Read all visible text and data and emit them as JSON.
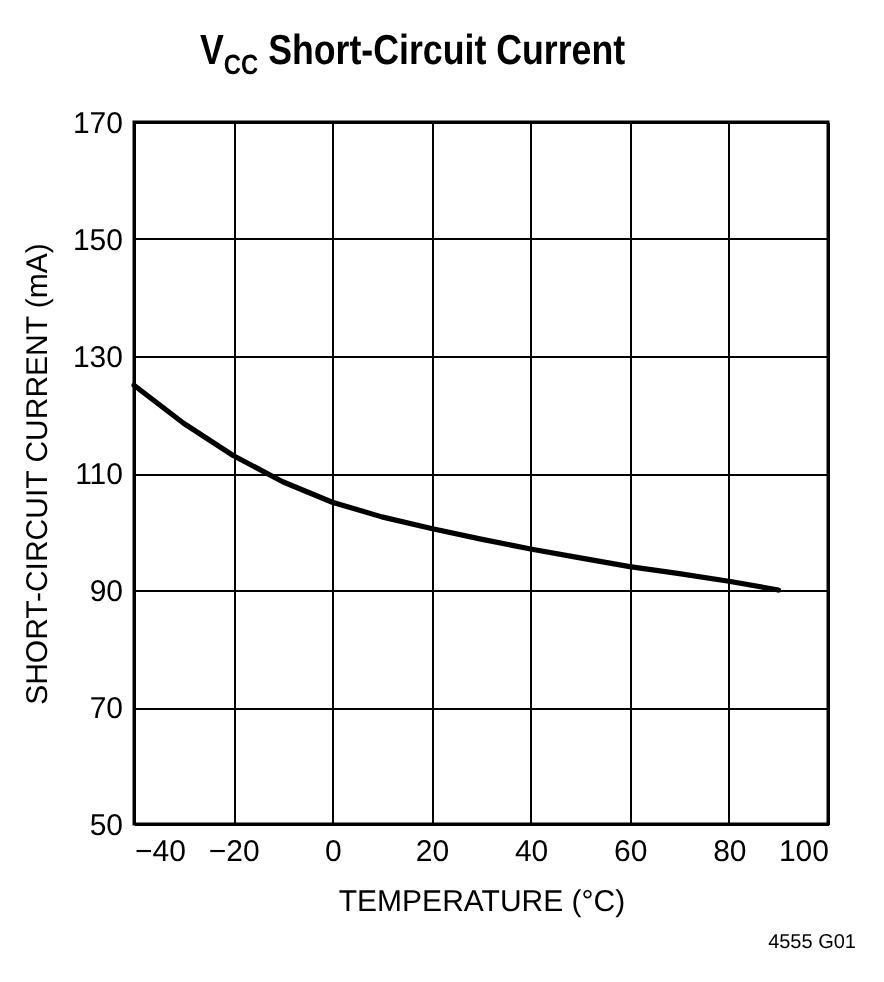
{
  "chart_data": {
    "type": "line",
    "title": "V$_{CC}$ Short-Circuit Current",
    "xlabel": "TEMPERATURE (°C)",
    "ylabel": "SHORT-CIRCUIT CURRENT (mA)",
    "x": [
      -40,
      -30,
      -20,
      -10,
      0,
      10,
      20,
      30,
      40,
      50,
      60,
      70,
      80,
      90
    ],
    "series": [
      {
        "color": "#000000",
        "values": [
          125,
          118.5,
          113,
          108.5,
          105,
          102.5,
          100.5,
          98.7,
          97,
          95.5,
          94,
          92.8,
          91.5,
          90
        ]
      }
    ],
    "xlim": [
      -40,
      100
    ],
    "xticks": [
      -40,
      -20,
      0,
      20,
      40,
      60,
      80,
      100
    ],
    "ylim": [
      50,
      170
    ],
    "yticks": [
      50,
      70,
      90,
      110,
      130,
      150,
      170
    ],
    "grid": true,
    "marker": "none",
    "line_style": "solid",
    "annotations": [
      "4555 G01"
    ]
  }
}
